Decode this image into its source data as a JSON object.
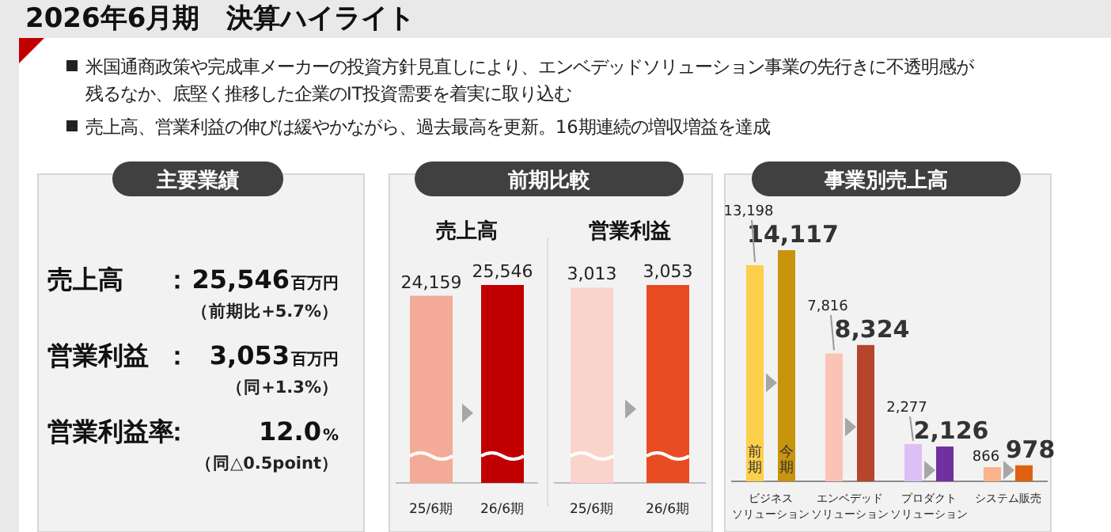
{
  "chart_data": [
    {
      "type": "other",
      "title": "2026年6月期　決算ハイライト",
      "annotations": [
        "米国通商政策や完成車メーカーの投資方針見直しにより、エンベデッドソリューション事業の先行きに不透明感が",
        "残るなか、底堅く推移した企業のIT投資需要を着実に取り込む",
        "売上高、営業利益の伸びは緩やかながら、過去最高を更新。16期連続の増収増益を達成"
      ]
    },
    {
      "type": "other",
      "title": "主要業績",
      "annotations": [
        "売上高",
        "：",
        "25,546",
        "百万円",
        "（前期比+5.7%）",
        "営業利益",
        "：",
        "3,053",
        "百万円",
        "（同+1.3%）",
        "営業利益率",
        "：",
        "12.0",
        "%",
        "（同△0.5point）"
      ]
    },
    {
      "type": "bar",
      "title": "前期比較",
      "subtitle": "売上高",
      "categories": [
        "25/6期",
        "26/6期"
      ],
      "values": [
        24159,
        25546
      ],
      "colors": [
        "#f4aa98",
        "#c00000"
      ],
      "value_labels": [
        "24,159",
        "25,546"
      ],
      "data_labels": true
    },
    {
      "type": "bar",
      "subtitle": "営業利益",
      "categories": [
        "25/6期",
        "26/6期"
      ],
      "values": [
        3013,
        3053
      ],
      "colors": [
        "#fad4cc",
        "#e84c22"
      ],
      "value_labels": [
        "3,013",
        "3,053"
      ],
      "data_labels": true
    },
    {
      "type": "bar",
      "title": "事業別売上高",
      "categories": [
        "ビジネスソリューション",
        "エンベデッドソリューション",
        "プロダクトソリューション",
        "システム販売"
      ],
      "series": [
        {
          "name": "前期",
          "colors": [
            "#fcd04a",
            "#fbc3b5",
            "#dcc0f5",
            "#fbb38b"
          ],
          "values": [
            13198,
            7816,
            2277,
            866
          ],
          "value_labels": [
            "13,198",
            "7,816",
            "2,277",
            "866"
          ]
        },
        {
          "name": "今期",
          "colors": [
            "#c8940c",
            "#b5452b",
            "#7030a0",
            "#e0600f"
          ],
          "values": [
            14117,
            8324,
            2126,
            978
          ],
          "value_labels": [
            "14,117",
            "8,324",
            "2,126",
            "978"
          ]
        }
      ],
      "data_labels": true
    }
  ]
}
